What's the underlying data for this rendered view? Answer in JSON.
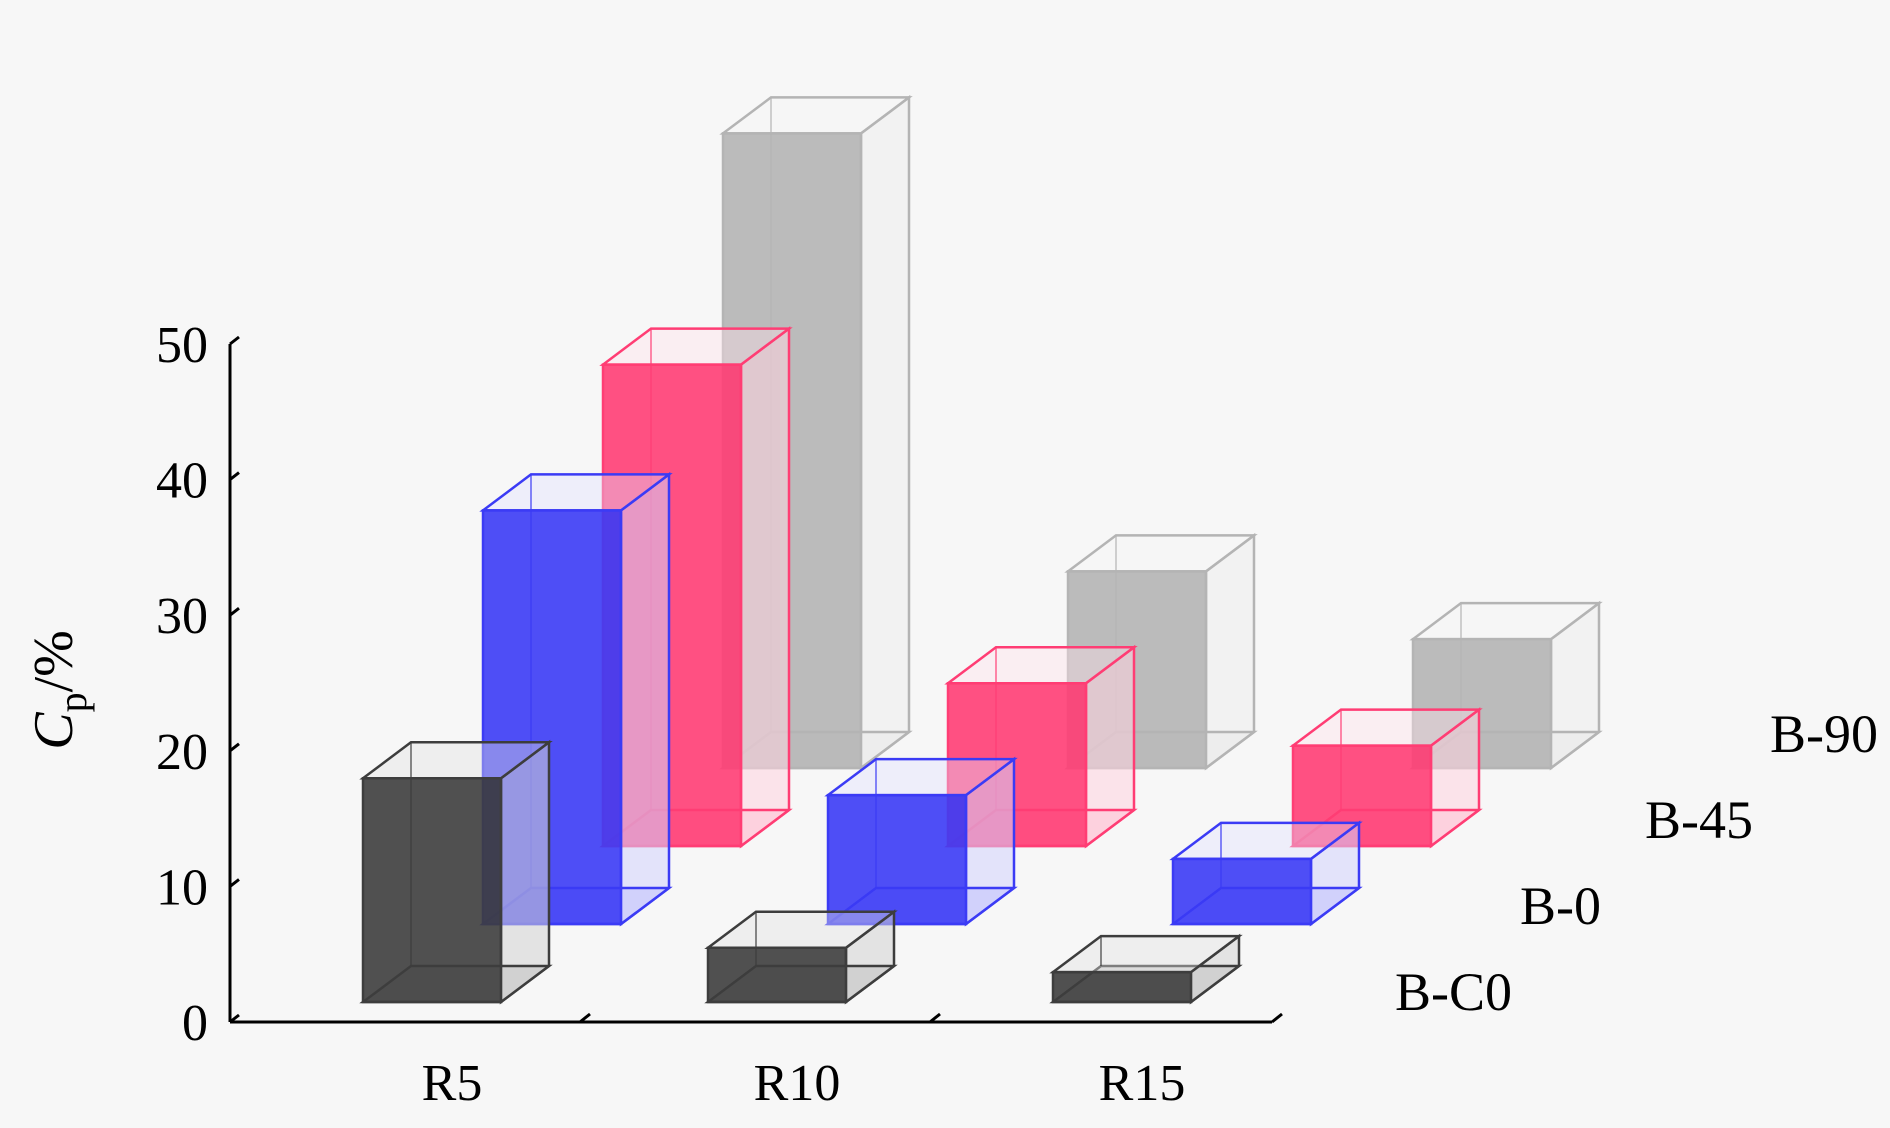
{
  "chart_data": {
    "type": "bar",
    "subtype": "3d-grouped-depth",
    "ylabel": "C",
    "ylabel_subscript": "p",
    "ylabel_unit": "/%",
    "ylim": [
      0,
      50
    ],
    "yticks": [
      0,
      10,
      20,
      30,
      40,
      50
    ],
    "categories": [
      "R5",
      "R10",
      "R15"
    ],
    "legend_position": "right, stacked by depth",
    "grid": false,
    "series": [
      {
        "name": "B-C0",
        "color": "#3d3d3d",
        "values": [
          16.5,
          4.0,
          2.2
        ]
      },
      {
        "name": "B-0",
        "color": "#3b3bf5",
        "values": [
          30.5,
          9.5,
          4.8
        ]
      },
      {
        "name": "B-45",
        "color": "#ff3d74",
        "values": [
          35.5,
          12.0,
          7.4
        ]
      },
      {
        "name": "B-90",
        "color": "#b4b4b4",
        "values": [
          46.8,
          14.5,
          9.5
        ]
      }
    ]
  }
}
